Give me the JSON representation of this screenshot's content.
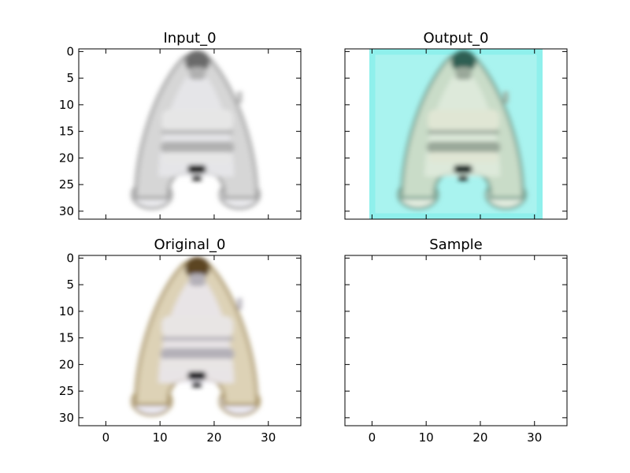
{
  "figure": {
    "background": "#ffffff"
  },
  "chart_data": [
    {
      "type": "image",
      "title": "Input_0",
      "xlim": [
        -5,
        36
      ],
      "ylim": [
        31.5,
        -0.5
      ],
      "image_extent": [
        -0.5,
        31.5,
        31.5,
        -0.5
      ],
      "image_content": "grayscale inflatable dinghy",
      "palette": {
        "bg": "#ffffff",
        "hull": "#d6d6d6",
        "hullEdge": "#9a9a9a",
        "bow": "#6a6a6a",
        "pontoon": "#e9e9ec",
        "seat": "#e6e6e6",
        "seatShadow": "#b0b0b0",
        "engine": "#1e1e1e",
        "glow": "none"
      },
      "xticks": {
        "values": [],
        "labels": []
      },
      "yticks": {
        "values": [
          0,
          5,
          10,
          15,
          20,
          25,
          30
        ],
        "labels": [
          "0",
          "5",
          "10",
          "15",
          "20",
          "25",
          "30"
        ]
      }
    },
    {
      "type": "image",
      "title": "Output_0",
      "xlim": [
        -5,
        36
      ],
      "ylim": [
        31.5,
        -0.5
      ],
      "image_extent": [
        -0.5,
        31.5,
        31.5,
        -0.5
      ],
      "image_content": "colorized inflatable dinghy with cyan background",
      "palette": {
        "bg": "#a9f3ef",
        "hull": "#c9dcc8",
        "hullEdge": "#6f9a8a",
        "bow": "#2f5f52",
        "pontoon": "#e2ecdf",
        "seat": "#e0e6d4",
        "seatShadow": "#9aa89a",
        "engine": "#1c2a26",
        "glow": "#8ff0ec"
      },
      "xticks": {
        "values": [],
        "labels": []
      },
      "yticks": {
        "values": [],
        "labels": []
      }
    },
    {
      "type": "image",
      "title": "Original_0",
      "xlim": [
        -5,
        36
      ],
      "ylim": [
        31.5,
        -0.5
      ],
      "image_extent": [
        -0.5,
        31.5,
        31.5,
        -0.5
      ],
      "image_content": "original color inflatable dinghy",
      "palette": {
        "bg": "#ffffff",
        "hull": "#ddd2b6",
        "hullEdge": "#a58f5c",
        "bow": "#5b4422",
        "pontoon": "#ebe9f2",
        "seat": "#e8e5e4",
        "seatShadow": "#b4b0b8",
        "engine": "#1b1b20",
        "glow": "none"
      },
      "xticks": {
        "values": [
          0,
          10,
          20,
          30
        ],
        "labels": [
          "0",
          "10",
          "20",
          "30"
        ]
      },
      "yticks": {
        "values": [
          0,
          5,
          10,
          15,
          20,
          25,
          30
        ],
        "labels": [
          "0",
          "5",
          "10",
          "15",
          "20",
          "25",
          "30"
        ]
      }
    },
    {
      "type": "image",
      "title": "Sample",
      "xlim": [
        -5,
        36
      ],
      "ylim": [
        31.5,
        -0.5
      ],
      "image_extent": null,
      "image_content": "empty",
      "palette": null,
      "xticks": {
        "values": [
          0,
          10,
          20,
          30
        ],
        "labels": [
          "0",
          "10",
          "20",
          "30"
        ]
      },
      "yticks": {
        "values": [],
        "labels": []
      }
    }
  ]
}
